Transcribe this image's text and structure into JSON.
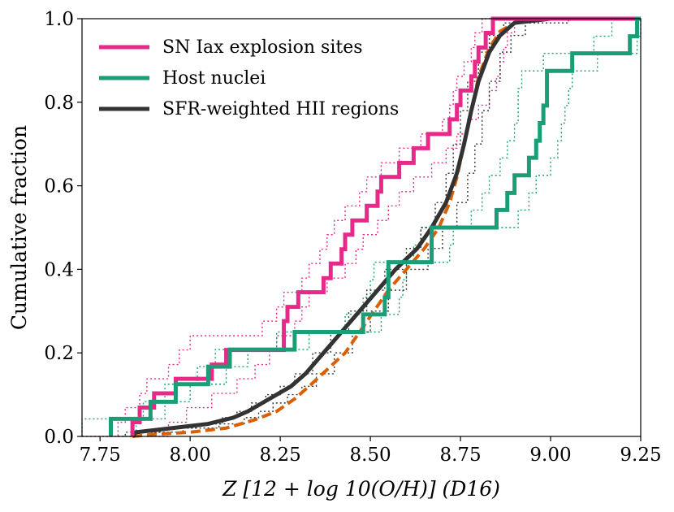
{
  "chart_data": {
    "type": "line",
    "title": "",
    "xlabel": "Z [12 + log 10(O/H)] (D16)",
    "ylabel": "Cumulative fraction",
    "xlim": [
      7.7,
      9.25
    ],
    "ylim": [
      0.0,
      1.0
    ],
    "xticks": [
      7.75,
      8.0,
      8.25,
      8.5,
      8.75,
      9.0,
      9.25
    ],
    "xtick_labels": [
      "7.75",
      "8.00",
      "8.25",
      "8.50",
      "8.75",
      "9.00",
      "9.25"
    ],
    "yticks": [
      0.0,
      0.2,
      0.4,
      0.6,
      0.8,
      1.0
    ],
    "ytick_labels": [
      "0.0",
      "0.2",
      "0.4",
      "0.6",
      "0.8",
      "1.0"
    ],
    "legend_position": "top-left",
    "series": [
      {
        "name": "SN Iax explosion sites",
        "color": "#e7298a",
        "style": "step",
        "values": [
          [
            7.84,
            0.0
          ],
          [
            7.84,
            0.034
          ],
          [
            7.86,
            0.069
          ],
          [
            7.9,
            0.103
          ],
          [
            7.96,
            0.138
          ],
          [
            8.06,
            0.172
          ],
          [
            8.1,
            0.207
          ],
          [
            8.26,
            0.241
          ],
          [
            8.26,
            0.276
          ],
          [
            8.27,
            0.31
          ],
          [
            8.3,
            0.345
          ],
          [
            8.37,
            0.379
          ],
          [
            8.39,
            0.414
          ],
          [
            8.42,
            0.448
          ],
          [
            8.43,
            0.483
          ],
          [
            8.45,
            0.517
          ],
          [
            8.49,
            0.552
          ],
          [
            8.52,
            0.586
          ],
          [
            8.53,
            0.621
          ],
          [
            8.58,
            0.655
          ],
          [
            8.62,
            0.69
          ],
          [
            8.66,
            0.724
          ],
          [
            8.72,
            0.759
          ],
          [
            8.74,
            0.793
          ],
          [
            8.75,
            0.828
          ],
          [
            8.78,
            0.862
          ],
          [
            8.79,
            0.897
          ],
          [
            8.8,
            0.931
          ],
          [
            8.82,
            0.966
          ],
          [
            8.84,
            1.0
          ]
        ]
      },
      {
        "name": "SN Iax explosion sites (upper bound)",
        "color": "#e7298a",
        "style": "dotted",
        "values": [
          [
            7.7,
            0.0
          ],
          [
            7.8,
            0.034
          ],
          [
            7.82,
            0.069
          ],
          [
            7.86,
            0.103
          ],
          [
            7.88,
            0.138
          ],
          [
            7.94,
            0.172
          ],
          [
            7.97,
            0.207
          ],
          [
            8.0,
            0.241
          ],
          [
            8.2,
            0.276
          ],
          [
            8.24,
            0.31
          ],
          [
            8.26,
            0.345
          ],
          [
            8.31,
            0.379
          ],
          [
            8.33,
            0.414
          ],
          [
            8.36,
            0.448
          ],
          [
            8.38,
            0.483
          ],
          [
            8.4,
            0.517
          ],
          [
            8.43,
            0.552
          ],
          [
            8.47,
            0.586
          ],
          [
            8.49,
            0.621
          ],
          [
            8.53,
            0.655
          ],
          [
            8.58,
            0.69
          ],
          [
            8.64,
            0.724
          ],
          [
            8.7,
            0.759
          ],
          [
            8.72,
            0.793
          ],
          [
            8.73,
            0.828
          ],
          [
            8.74,
            0.862
          ],
          [
            8.76,
            0.897
          ],
          [
            8.78,
            0.931
          ],
          [
            8.79,
            0.966
          ],
          [
            8.81,
            1.0
          ]
        ]
      },
      {
        "name": "SN Iax explosion sites (lower bound)",
        "color": "#e7298a",
        "style": "dotted",
        "values": [
          [
            7.89,
            0.0
          ],
          [
            7.94,
            0.034
          ],
          [
            7.99,
            0.069
          ],
          [
            8.06,
            0.103
          ],
          [
            8.13,
            0.138
          ],
          [
            8.18,
            0.172
          ],
          [
            8.22,
            0.207
          ],
          [
            8.24,
            0.241
          ],
          [
            8.29,
            0.276
          ],
          [
            8.31,
            0.31
          ],
          [
            8.33,
            0.345
          ],
          [
            8.38,
            0.379
          ],
          [
            8.43,
            0.414
          ],
          [
            8.46,
            0.448
          ],
          [
            8.48,
            0.483
          ],
          [
            8.52,
            0.517
          ],
          [
            8.55,
            0.552
          ],
          [
            8.58,
            0.586
          ],
          [
            8.62,
            0.621
          ],
          [
            8.67,
            0.655
          ],
          [
            8.71,
            0.69
          ],
          [
            8.74,
            0.724
          ],
          [
            8.77,
            0.759
          ],
          [
            8.8,
            0.793
          ],
          [
            8.83,
            0.828
          ],
          [
            8.85,
            0.862
          ],
          [
            8.86,
            0.897
          ],
          [
            8.87,
            0.931
          ],
          [
            8.88,
            0.966
          ],
          [
            8.9,
            1.0
          ]
        ]
      },
      {
        "name": "Host nuclei",
        "color": "#1b9e77",
        "style": "step",
        "values": [
          [
            7.78,
            0.0
          ],
          [
            7.78,
            0.042
          ],
          [
            7.89,
            0.083
          ],
          [
            7.96,
            0.125
          ],
          [
            8.05,
            0.167
          ],
          [
            8.11,
            0.208
          ],
          [
            8.29,
            0.25
          ],
          [
            8.48,
            0.292
          ],
          [
            8.54,
            0.333
          ],
          [
            8.55,
            0.375
          ],
          [
            8.55,
            0.417
          ],
          [
            8.67,
            0.458
          ],
          [
            8.67,
            0.5
          ],
          [
            8.85,
            0.542
          ],
          [
            8.88,
            0.583
          ],
          [
            8.9,
            0.625
          ],
          [
            8.94,
            0.667
          ],
          [
            8.96,
            0.708
          ],
          [
            8.97,
            0.75
          ],
          [
            8.98,
            0.792
          ],
          [
            8.99,
            0.833
          ],
          [
            8.99,
            0.875
          ],
          [
            9.06,
            0.917
          ],
          [
            9.22,
            0.958
          ],
          [
            9.24,
            1.0
          ]
        ]
      },
      {
        "name": "Host nuclei (upper bound)",
        "color": "#1b9e77",
        "style": "dotted",
        "values": [
          [
            7.7,
            0.0
          ],
          [
            7.7,
            0.042
          ],
          [
            7.87,
            0.083
          ],
          [
            7.93,
            0.125
          ],
          [
            8.02,
            0.167
          ],
          [
            8.07,
            0.208
          ],
          [
            8.24,
            0.25
          ],
          [
            8.43,
            0.292
          ],
          [
            8.48,
            0.333
          ],
          [
            8.5,
            0.375
          ],
          [
            8.51,
            0.417
          ],
          [
            8.62,
            0.458
          ],
          [
            8.64,
            0.5
          ],
          [
            8.78,
            0.542
          ],
          [
            8.81,
            0.583
          ],
          [
            8.83,
            0.625
          ],
          [
            8.86,
            0.667
          ],
          [
            8.88,
            0.708
          ],
          [
            8.9,
            0.75
          ],
          [
            8.91,
            0.792
          ],
          [
            8.91,
            0.833
          ],
          [
            8.92,
            0.875
          ],
          [
            8.98,
            0.917
          ],
          [
            9.12,
            0.958
          ],
          [
            9.17,
            1.0
          ]
        ]
      },
      {
        "name": "Host nuclei (lower bound)",
        "color": "#1b9e77",
        "style": "dotted",
        "values": [
          [
            7.82,
            0.0
          ],
          [
            7.85,
            0.042
          ],
          [
            7.93,
            0.083
          ],
          [
            8.0,
            0.125
          ],
          [
            8.1,
            0.167
          ],
          [
            8.16,
            0.208
          ],
          [
            8.33,
            0.25
          ],
          [
            8.53,
            0.292
          ],
          [
            8.58,
            0.333
          ],
          [
            8.59,
            0.375
          ],
          [
            8.6,
            0.417
          ],
          [
            8.72,
            0.458
          ],
          [
            8.73,
            0.5
          ],
          [
            8.91,
            0.542
          ],
          [
            8.94,
            0.583
          ],
          [
            8.96,
            0.625
          ],
          [
            9.0,
            0.667
          ],
          [
            9.02,
            0.708
          ],
          [
            9.03,
            0.75
          ],
          [
            9.04,
            0.792
          ],
          [
            9.05,
            0.833
          ],
          [
            9.06,
            0.875
          ],
          [
            9.13,
            0.917
          ],
          [
            9.24,
            0.958
          ],
          [
            9.25,
            1.0
          ]
        ]
      },
      {
        "name": "SFR-weighted HII regions",
        "color": "#333333",
        "style": "line",
        "values": [
          [
            7.84,
            0.0
          ],
          [
            7.85,
            0.01
          ],
          [
            7.95,
            0.02
          ],
          [
            8.05,
            0.03
          ],
          [
            8.12,
            0.045
          ],
          [
            8.16,
            0.06
          ],
          [
            8.2,
            0.08
          ],
          [
            8.24,
            0.1
          ],
          [
            8.28,
            0.12
          ],
          [
            8.32,
            0.15
          ],
          [
            8.37,
            0.2
          ],
          [
            8.42,
            0.25
          ],
          [
            8.47,
            0.3
          ],
          [
            8.52,
            0.35
          ],
          [
            8.57,
            0.4
          ],
          [
            8.63,
            0.45
          ],
          [
            8.67,
            0.5
          ],
          [
            8.71,
            0.56
          ],
          [
            8.74,
            0.63
          ],
          [
            8.76,
            0.7
          ],
          [
            8.78,
            0.78
          ],
          [
            8.8,
            0.85
          ],
          [
            8.83,
            0.92
          ],
          [
            8.86,
            0.96
          ],
          [
            8.9,
            0.99
          ],
          [
            9.0,
            1.0
          ]
        ]
      },
      {
        "name": "SFR-weighted HII regions (upper bound)",
        "color": "#333333",
        "style": "dotted",
        "values": [
          [
            7.8,
            0.0
          ],
          [
            7.82,
            0.01
          ],
          [
            7.92,
            0.02
          ],
          [
            8.02,
            0.03
          ],
          [
            8.09,
            0.045
          ],
          [
            8.13,
            0.06
          ],
          [
            8.17,
            0.08
          ],
          [
            8.21,
            0.1
          ],
          [
            8.25,
            0.12
          ],
          [
            8.29,
            0.15
          ],
          [
            8.34,
            0.2
          ],
          [
            8.39,
            0.25
          ],
          [
            8.44,
            0.3
          ],
          [
            8.49,
            0.35
          ],
          [
            8.54,
            0.4
          ],
          [
            8.6,
            0.45
          ],
          [
            8.64,
            0.5
          ],
          [
            8.68,
            0.56
          ],
          [
            8.71,
            0.63
          ],
          [
            8.73,
            0.7
          ],
          [
            8.75,
            0.78
          ],
          [
            8.77,
            0.85
          ],
          [
            8.8,
            0.92
          ],
          [
            8.83,
            0.96
          ],
          [
            8.87,
            0.99
          ],
          [
            8.95,
            1.0
          ]
        ]
      },
      {
        "name": "SFR-weighted HII regions (lower bound)",
        "color": "#333333",
        "style": "dotted",
        "values": [
          [
            7.88,
            0.0
          ],
          [
            7.89,
            0.01
          ],
          [
            7.98,
            0.02
          ],
          [
            8.08,
            0.03
          ],
          [
            8.15,
            0.045
          ],
          [
            8.19,
            0.06
          ],
          [
            8.23,
            0.08
          ],
          [
            8.27,
            0.1
          ],
          [
            8.31,
            0.12
          ],
          [
            8.35,
            0.15
          ],
          [
            8.4,
            0.2
          ],
          [
            8.45,
            0.25
          ],
          [
            8.5,
            0.3
          ],
          [
            8.55,
            0.35
          ],
          [
            8.6,
            0.4
          ],
          [
            8.66,
            0.45
          ],
          [
            8.7,
            0.5
          ],
          [
            8.74,
            0.56
          ],
          [
            8.77,
            0.63
          ],
          [
            8.79,
            0.7
          ],
          [
            8.81,
            0.78
          ],
          [
            8.83,
            0.85
          ],
          [
            8.86,
            0.92
          ],
          [
            8.89,
            0.96
          ],
          [
            8.93,
            0.99
          ],
          [
            9.05,
            1.0
          ]
        ]
      },
      {
        "name": "Orange dashed comparison",
        "color": "#d95f02",
        "style": "dashed",
        "values": [
          [
            7.84,
            0.0
          ],
          [
            7.9,
            0.005
          ],
          [
            8.0,
            0.01
          ],
          [
            8.1,
            0.02
          ],
          [
            8.18,
            0.04
          ],
          [
            8.24,
            0.06
          ],
          [
            8.29,
            0.09
          ],
          [
            8.33,
            0.12
          ],
          [
            8.38,
            0.16
          ],
          [
            8.43,
            0.2
          ],
          [
            8.47,
            0.25
          ],
          [
            8.51,
            0.3
          ],
          [
            8.55,
            0.35
          ],
          [
            8.6,
            0.4
          ],
          [
            8.65,
            0.45
          ],
          [
            8.69,
            0.5
          ],
          [
            8.72,
            0.56
          ],
          [
            8.74,
            0.62
          ],
          [
            8.76,
            0.7
          ],
          [
            8.78,
            0.78
          ],
          [
            8.8,
            0.86
          ],
          [
            8.83,
            0.93
          ],
          [
            8.86,
            0.97
          ],
          [
            8.9,
            0.99
          ],
          [
            9.0,
            1.0
          ]
        ]
      }
    ],
    "legend": [
      {
        "label": "SN Iax explosion sites",
        "color": "#e7298a"
      },
      {
        "label": "Host nuclei",
        "color": "#1b9e77"
      },
      {
        "label": "SFR-weighted HII regions",
        "color": "#333333"
      }
    ]
  }
}
